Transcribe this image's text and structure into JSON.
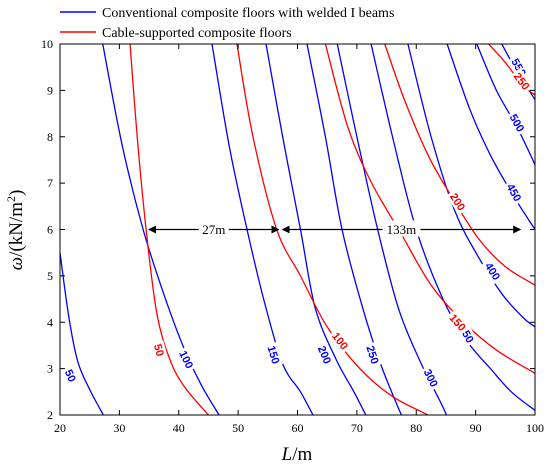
{
  "chart_data": {
    "type": "line",
    "xlabel": {
      "italic": "L",
      "rest": "/m"
    },
    "ylabel": {
      "italic": "ω",
      "rest": "/(kN/m",
      "sup": "2",
      "close": ")"
    },
    "xlim": [
      20,
      100
    ],
    "ylim": [
      2,
      10
    ],
    "x_ticks": [
      20,
      30,
      40,
      50,
      60,
      70,
      80,
      90,
      100
    ],
    "y_ticks": [
      2,
      3,
      4,
      5,
      6,
      7,
      8,
      9,
      10
    ],
    "legend_position": "top-left",
    "series": [
      {
        "name": "Conventional composite floors with welded I beams",
        "color": "#0000ff",
        "contours": [
          {
            "label": "50",
            "label_at": [
              21.8,
              2.85
            ],
            "points": [
              [
                20,
                5.5
              ],
              [
                21.5,
                4.1
              ],
              [
                23,
                3.15
              ],
              [
                25,
                2.55
              ],
              [
                27.3,
                2.0
              ]
            ]
          },
          {
            "label": "100",
            "label_at": [
              41.3,
              3.2
            ],
            "points": [
              [
                27.2,
                10
              ],
              [
                30.5,
                7.8
              ],
              [
                34,
                6.0
              ],
              [
                37.5,
                4.6
              ],
              [
                41,
                3.4
              ],
              [
                44,
                2.6
              ],
              [
                46.8,
                2.0
              ]
            ]
          },
          {
            "label": "150",
            "label_at": [
              56.0,
              3.3
            ],
            "points": [
              [
                45.6,
                10
              ],
              [
                48.5,
                7.8
              ],
              [
                51.5,
                6.0
              ],
              [
                54.5,
                4.4
              ],
              [
                57.5,
                3.1
              ],
              [
                60.5,
                2.5
              ],
              [
                62.6,
                2.0
              ]
            ]
          },
          {
            "label": "200",
            "label_at": [
              64.6,
              3.3
            ],
            "points": [
              [
                54.7,
                10
              ],
              [
                57.5,
                8.0
              ],
              [
                60.5,
                6.0
              ],
              [
                63,
                4.3
              ],
              [
                66.5,
                3.2
              ],
              [
                69.5,
                2.5
              ],
              [
                71.5,
                2.0
              ]
            ]
          },
          {
            "label": "250",
            "label_at": [
              72.7,
              3.3
            ],
            "points": [
              [
                61.6,
                10
              ],
              [
                64.7,
                8.0
              ],
              [
                67.5,
                6.0
              ],
              [
                71,
                4.3
              ],
              [
                74,
                3.1
              ],
              [
                76.5,
                2.3
              ],
              [
                77.5,
                2.0
              ]
            ]
          },
          {
            "label": "300",
            "label_at": [
              82.5,
              2.8
            ],
            "points": [
              [
                66.7,
                10
              ],
              [
                70,
                8.0
              ],
              [
                73.5,
                6.0
              ],
              [
                77,
                4.3
              ],
              [
                80.5,
                3.2
              ],
              [
                84,
                2.3
              ],
              [
                85.1,
                2.0
              ]
            ]
          },
          {
            "label": "350",
            "label_at": [
              88.5,
              3.75
            ],
            "points": [
              [
                72.4,
                10
              ],
              [
                76,
                8.0
              ],
              [
                80,
                6.0
              ],
              [
                84.5,
                4.5
              ],
              [
                88.5,
                3.6
              ],
              [
                92.5,
                3.0
              ],
              [
                96,
                2.5
              ],
              [
                100,
                2.1
              ]
            ]
          },
          {
            "label": "400",
            "label_at": [
              92.9,
              5.1
            ],
            "points": [
              [
                78.6,
                10
              ],
              [
                82.5,
                8.0
              ],
              [
                86.5,
                6.4
              ],
              [
                90.5,
                5.4
              ],
              [
                94.5,
                4.6
              ],
              [
                98,
                4.1
              ],
              [
                100,
                3.9
              ]
            ]
          },
          {
            "label": "450",
            "label_at": [
              96.5,
              6.8
            ],
            "points": [
              [
                85.2,
                10
              ],
              [
                89,
                8.6
              ],
              [
                92.5,
                7.6
              ],
              [
                96.5,
                6.7
              ],
              [
                100,
                6.0
              ]
            ]
          },
          {
            "label": "500",
            "label_at": [
              97.0,
              8.3
            ],
            "points": [
              [
                90.2,
                10
              ],
              [
                93.5,
                9.0
              ],
              [
                97,
                8.2
              ],
              [
                100,
                7.4
              ]
            ]
          },
          {
            "label": "550",
            "label_at": [
              97.3,
              9.5
            ],
            "points": [
              [
                94.4,
                10
              ],
              [
                97,
                9.4
              ],
              [
                100,
                8.8
              ]
            ]
          }
        ]
      },
      {
        "name": "Cable-supported composite floors",
        "color": "#ff0000",
        "contours": [
          {
            "label": "50",
            "label_at": [
              36.7,
              3.4
            ],
            "points": [
              [
                31.8,
                10
              ],
              [
                33,
                8.0
              ],
              [
                34.5,
                6.0
              ],
              [
                36.3,
                4.2
              ],
              [
                38.5,
                3.2
              ],
              [
                41,
                2.6
              ],
              [
                45,
                2.0
              ]
            ]
          },
          {
            "label": "100",
            "label_at": [
              67.2,
              3.6
            ],
            "points": [
              [
                49.8,
                10
              ],
              [
                52.5,
                8.0
              ],
              [
                56.5,
                6.0
              ],
              [
                60.5,
                5.0
              ],
              [
                65,
                3.9
              ],
              [
                70.5,
                3.0
              ],
              [
                76,
                2.4
              ],
              [
                82,
                2.0
              ]
            ]
          },
          {
            "label": "150",
            "label_at": [
              87.0,
              4.0
            ],
            "points": [
              [
                64.7,
                10
              ],
              [
                68.5,
                8.2
              ],
              [
                72.5,
                7.0
              ],
              [
                77.5,
                5.9
              ],
              [
                82.5,
                4.8
              ],
              [
                88,
                4.0
              ],
              [
                93.5,
                3.4
              ],
              [
                100,
                2.9
              ]
            ]
          },
          {
            "label": "200",
            "label_at": [
              87.0,
              6.6
            ],
            "points": [
              [
                74.7,
                10
              ],
              [
                78,
                8.8
              ],
              [
                82,
                7.6
              ],
              [
                86,
                6.7
              ],
              [
                90.5,
                5.8
              ],
              [
                95,
                5.2
              ],
              [
                100,
                4.8
              ]
            ]
          },
          {
            "label": "250",
            "label_at": [
              97.8,
              9.2
            ],
            "points": [
              [
                92.2,
                10
              ],
              [
                95,
                9.6
              ],
              [
                98,
                9.1
              ],
              [
                100,
                8.9
              ]
            ]
          }
        ]
      }
    ],
    "annotations": [
      {
        "text": "27m",
        "x_from": 35,
        "x_to": 56.8,
        "y": 6.0
      },
      {
        "text": "133m",
        "x_from": 57.5,
        "x_to": 97.5,
        "y": 6.0
      }
    ]
  }
}
